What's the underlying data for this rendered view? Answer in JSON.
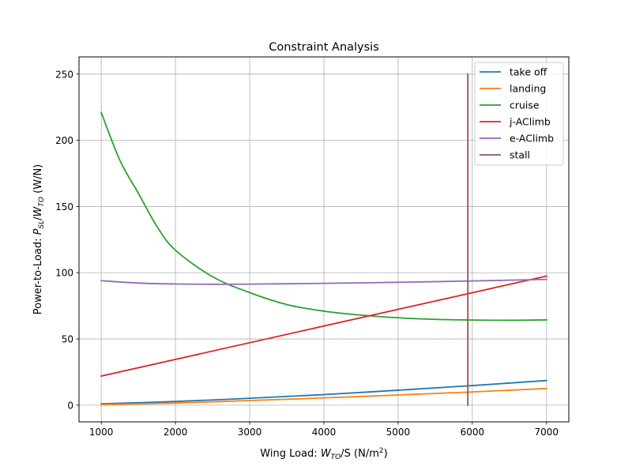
{
  "chart_data": {
    "type": "line",
    "title": "Constraint Analysis",
    "xlabel": {
      "prefix": "Wing Load: ",
      "sym": "W",
      "sub": "TO",
      "mid": "/S (N/m",
      "sup": "2",
      "suffix": ")"
    },
    "ylabel": {
      "prefix": "Power-to-Load: ",
      "sym1": "P",
      "sub1": "SL",
      "mid": "/",
      "sym2": "W",
      "sub2": "TO",
      "suffix": " (W/N)"
    },
    "xlim": [
      700,
      7300
    ],
    "ylim": [
      -12.6,
      263
    ],
    "xticks": [
      1000,
      2000,
      3000,
      4000,
      5000,
      6000,
      7000
    ],
    "yticks": [
      0,
      50,
      100,
      150,
      200,
      250
    ],
    "grid": true,
    "legend_position": "top-right",
    "series": [
      {
        "name": "take off",
        "color": "#1f77b4",
        "x": [
          1000,
          2000,
          3000,
          4000,
          5000,
          6000,
          7000
        ],
        "y": [
          1.0,
          2.8,
          5.2,
          8.0,
          11.3,
          14.8,
          18.6
        ]
      },
      {
        "name": "landing",
        "color": "#ff7f0e",
        "x": [
          1000,
          2000,
          3000,
          4000,
          5000,
          6000,
          7000
        ],
        "y": [
          0.5,
          1.6,
          3.5,
          5.5,
          7.7,
          10.0,
          12.6
        ]
      },
      {
        "name": "cruise",
        "color": "#2ca02c",
        "x": [
          1000,
          1250,
          1500,
          1750,
          2000,
          2500,
          3000,
          3500,
          4000,
          4500,
          5000,
          5500,
          6000,
          6500,
          7000
        ],
        "y": [
          221,
          185,
          160,
          135,
          117,
          97,
          85,
          76,
          71,
          68,
          66,
          64.8,
          64.3,
          64.1,
          64.4
        ]
      },
      {
        "name": "j-AClimb",
        "color": "#d62728",
        "x": [
          1000,
          7000
        ],
        "y": [
          22,
          97.5
        ]
      },
      {
        "name": "e-AClimb",
        "color": "#9467bd",
        "x": [
          1000,
          1500,
          2000,
          2500,
          3000,
          4000,
          5000,
          6000,
          7000
        ],
        "y": [
          94,
          92.2,
          91.5,
          91.3,
          91.4,
          92,
          92.8,
          93.8,
          95
        ]
      },
      {
        "name": "stall",
        "color": "#8c564b",
        "x": [
          5940,
          5940
        ],
        "y": [
          0,
          250
        ]
      }
    ]
  }
}
